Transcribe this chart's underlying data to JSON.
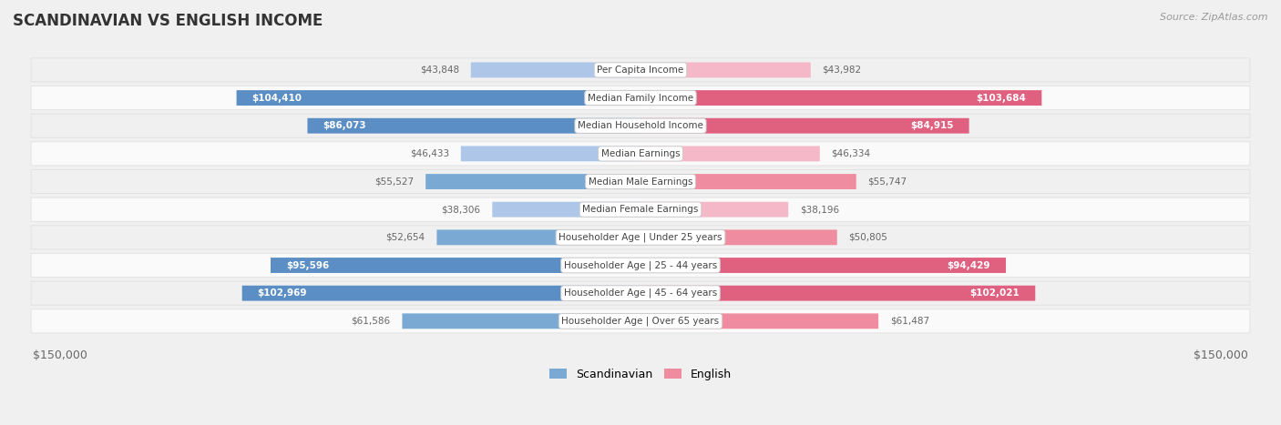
{
  "title": "SCANDINAVIAN VS ENGLISH INCOME",
  "source": "Source: ZipAtlas.com",
  "categories": [
    "Per Capita Income",
    "Median Family Income",
    "Median Household Income",
    "Median Earnings",
    "Median Male Earnings",
    "Median Female Earnings",
    "Householder Age | Under 25 years",
    "Householder Age | 25 - 44 years",
    "Householder Age | 45 - 64 years",
    "Householder Age | Over 65 years"
  ],
  "scandinavian": [
    43848,
    104410,
    86073,
    46433,
    55527,
    38306,
    52654,
    95596,
    102969,
    61586
  ],
  "english": [
    43982,
    103684,
    84915,
    46334,
    55747,
    38196,
    50805,
    94429,
    102021,
    61487
  ],
  "scand_labels": [
    "$43,848",
    "$104,410",
    "$86,073",
    "$46,433",
    "$55,527",
    "$38,306",
    "$52,654",
    "$95,596",
    "$102,969",
    "$61,586"
  ],
  "english_labels": [
    "$43,982",
    "$103,684",
    "$84,915",
    "$46,334",
    "$55,747",
    "$38,196",
    "$50,805",
    "$94,429",
    "$102,021",
    "$61,487"
  ],
  "max_val": 150000,
  "blue_light": "#aec6e8",
  "blue_mid": "#7aaad4",
  "blue_dark": "#5b8ec4",
  "pink_light": "#f4b8c8",
  "pink_mid": "#f08ca0",
  "pink_dark": "#e06080",
  "row_bg_odd": "#f0f0f0",
  "row_bg_even": "#fafafa",
  "bg_color": "#f0f0f0",
  "title_color": "#333333",
  "source_color": "#999999",
  "legend_blue": "#7aaad4",
  "legend_pink": "#f08ca0",
  "inside_label_color": "#ffffff",
  "outside_label_color": "#666666",
  "center_label_color": "#444444",
  "threshold_inside": 65000
}
